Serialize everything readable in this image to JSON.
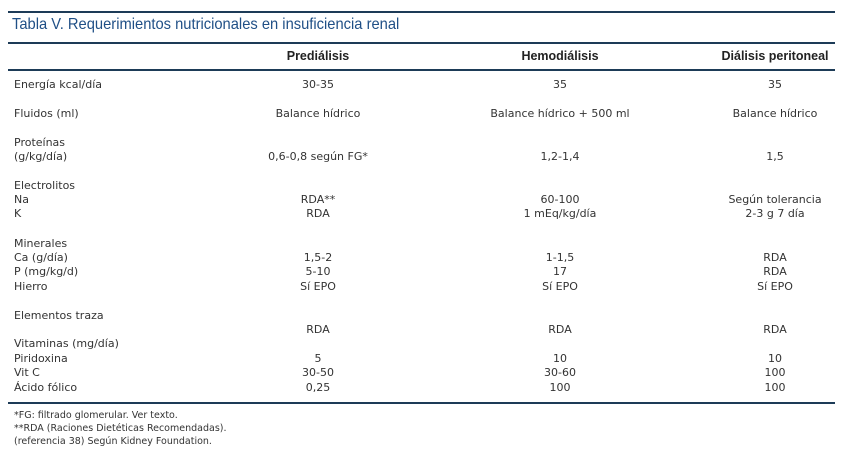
{
  "title": "Tabla V.  Requerimientos nutricionales en insuficiencia renal",
  "columns": [
    "Prediálisis",
    "Hemodiálisis",
    "Diálisis peritoneal"
  ],
  "rows": {
    "energia": {
      "label": "Energía kcal/día",
      "v": [
        "30-35",
        "35",
        "35"
      ]
    },
    "fluidos": {
      "label": "Fluidos (ml)",
      "v": [
        "Balance hídrico",
        "Balance hídrico + 500 ml",
        "Balance hídrico"
      ]
    },
    "proteinas": {
      "label": "Proteínas",
      "label2": "(g/kg/día)",
      "v": [
        "0,6-0,8 según FG*",
        "1,2-1,4",
        "1,5"
      ]
    },
    "electrolitos": {
      "label": "Electrolitos"
    },
    "na": {
      "label": "Na",
      "v": [
        "RDA**",
        "60-100",
        "Según tolerancia"
      ]
    },
    "k": {
      "label": "K",
      "v": [
        "RDA",
        "1 mEq/kg/día",
        "2-3 g 7 día"
      ]
    },
    "minerales": {
      "label": "Minerales"
    },
    "ca": {
      "label": "Ca (g/día)",
      "v": [
        "1,5-2",
        "1-1,5",
        "RDA"
      ]
    },
    "p": {
      "label": "P (mg/kg/d)",
      "v": [
        "5-10",
        "17",
        "RDA"
      ]
    },
    "hierro": {
      "label": "Hierro",
      "v": [
        "Sí EPO",
        "Sí EPO",
        "Sí EPO"
      ]
    },
    "traza": {
      "label": "Elementos traza",
      "v": [
        "RDA",
        "RDA",
        "RDA"
      ]
    },
    "vitaminas": {
      "label": "Vitaminas (mg/día)"
    },
    "piridoxina": {
      "label": "Piridoxina",
      "v": [
        "5",
        "10",
        "10"
      ]
    },
    "vitc": {
      "label": "Vit C",
      "v": [
        "30-50",
        "30-60",
        "100"
      ]
    },
    "folico": {
      "label": "Ácido fólico",
      "v": [
        "0,25",
        "100",
        "100"
      ]
    }
  },
  "footnotes": [
    "*FG: filtrado glomerular. Ver texto.",
    "**RDA  (Raciones Dietéticas Recomendadas).",
    "(referencia 38) Según Kidney Foundation."
  ]
}
